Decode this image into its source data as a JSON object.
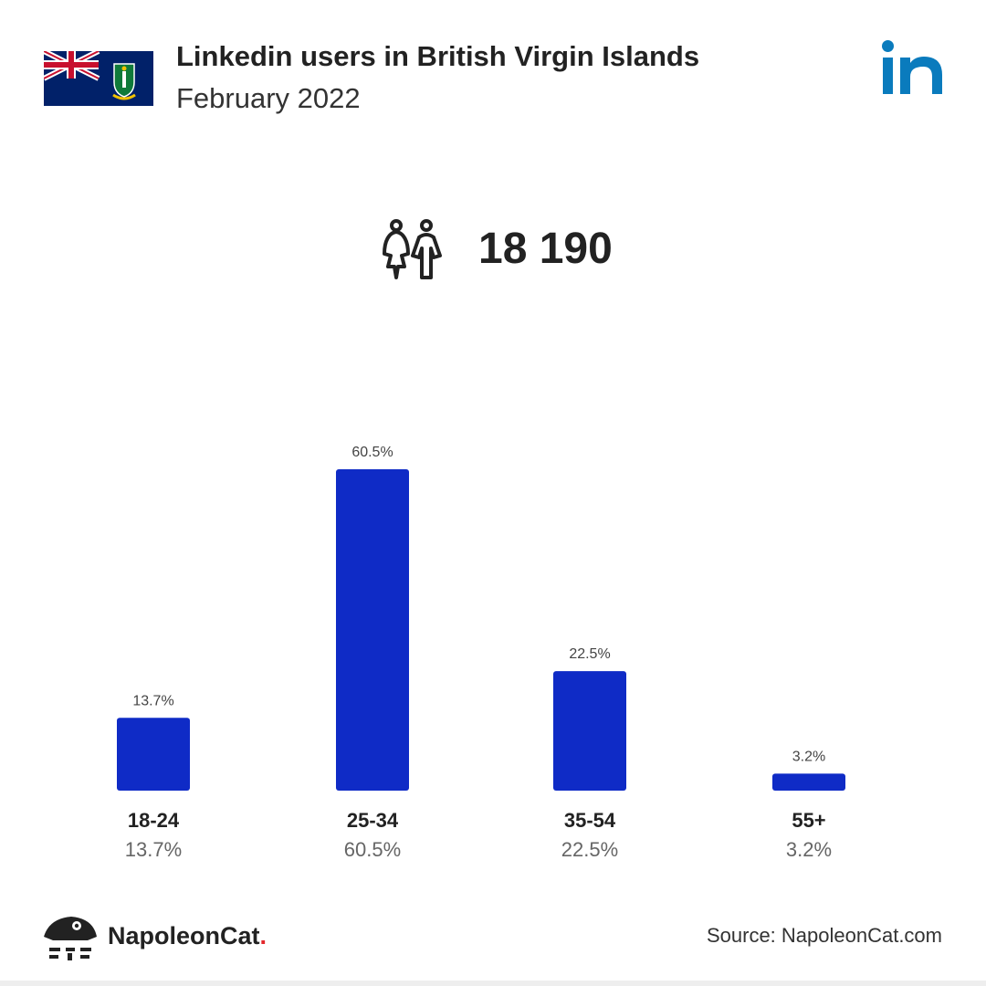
{
  "header": {
    "title": "Linkedin users in British Virgin Islands",
    "subtitle": "February 2022"
  },
  "total_users": "18 190",
  "chart_data": {
    "type": "bar",
    "categories": [
      "18-24",
      "25-34",
      "35-54",
      "55+"
    ],
    "values": [
      13.7,
      60.5,
      22.5,
      3.2
    ],
    "value_labels": [
      "13.7%",
      "60.5%",
      "22.5%",
      "3.2%"
    ],
    "ylim": [
      0,
      60.5
    ],
    "grid": false,
    "legend": "none"
  },
  "footer": {
    "brand_name": "NapoleonCat",
    "brand_dot": ".",
    "source": "Source: NapoleonCat.com"
  },
  "colors": {
    "bar": "#0f2bc6",
    "linkedin": "#0a7bbd",
    "flag_blue": "#012169",
    "flag_red": "#c8102e",
    "brand_dot": "#e3262b"
  },
  "icons": {
    "flag": "british-virgin-islands-flag-icon",
    "linkedin": "linkedin-logo-icon",
    "users": "people-icon",
    "brand": "napoleoncat-logo-icon"
  }
}
